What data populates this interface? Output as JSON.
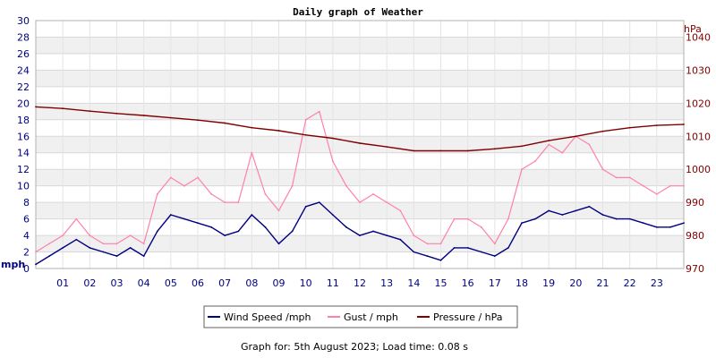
{
  "chart_data": {
    "type": "line",
    "title": "Daily graph of Weather",
    "footer": "Graph for: 5th August 2023; Load time: 0.08 s",
    "left_axis": {
      "unit": "mph",
      "ylim": [
        0,
        30
      ],
      "ticks": [
        "0",
        "2",
        "4",
        "6",
        "8",
        "10",
        "12",
        "14",
        "16",
        "18",
        "20",
        "22",
        "24",
        "26",
        "28",
        "30"
      ]
    },
    "right_axis": {
      "unit": "hPa",
      "ylim": [
        970,
        1045
      ],
      "ticks": [
        "970",
        "980",
        "990",
        "1000",
        "1010",
        "1020",
        "1030",
        "1040"
      ]
    },
    "x_tick_labels": [
      "01",
      "02",
      "03",
      "04",
      "05",
      "06",
      "07",
      "08",
      "09",
      "10",
      "11",
      "12",
      "13",
      "14",
      "15",
      "16",
      "17",
      "18",
      "19",
      "20",
      "21",
      "22",
      "23"
    ],
    "x_range_hours": [
      0,
      24
    ],
    "grid": true,
    "legend_position": "bottom",
    "colors": {
      "wind": "#000080",
      "gust": "#ff80a8",
      "pressure": "#800000",
      "band": "#f0f0f0",
      "grid": "#d8d8d8"
    },
    "series": [
      {
        "name": "Wind Speed /mph",
        "key": "wind",
        "axis": "left",
        "x": [
          0,
          0.5,
          1,
          1.5,
          2,
          2.5,
          3,
          3.5,
          4,
          4.5,
          5,
          5.5,
          6,
          6.5,
          7,
          7.5,
          8,
          8.5,
          9,
          9.5,
          10,
          10.5,
          11,
          11.5,
          12,
          12.5,
          13,
          13.5,
          14,
          14.5,
          15,
          15.5,
          16,
          16.5,
          17,
          17.5,
          18,
          18.5,
          19,
          19.5,
          20,
          20.5,
          21,
          21.5,
          22,
          22.5,
          23,
          23.5,
          24
        ],
        "values": [
          0.5,
          1.5,
          2.5,
          3.5,
          2.5,
          2.0,
          1.5,
          2.5,
          1.5,
          4.5,
          6.5,
          6.0,
          5.5,
          5.0,
          4.0,
          4.5,
          6.5,
          5.0,
          3.0,
          4.5,
          7.5,
          8.0,
          6.5,
          5.0,
          4.0,
          4.5,
          4.0,
          3.5,
          2.0,
          1.5,
          1.0,
          2.5,
          2.5,
          2.0,
          1.5,
          2.5,
          5.5,
          6.0,
          7.0,
          6.5,
          7.0,
          7.5,
          6.5,
          6.0,
          6.0,
          5.5,
          5.0,
          5.0,
          5.5
        ]
      },
      {
        "name": "Gust / mph",
        "key": "gust",
        "axis": "left",
        "x": [
          0,
          0.5,
          1,
          1.5,
          2,
          2.5,
          3,
          3.5,
          4,
          4.5,
          5,
          5.5,
          6,
          6.5,
          7,
          7.5,
          8,
          8.5,
          9,
          9.5,
          10,
          10.5,
          11,
          11.5,
          12,
          12.5,
          13,
          13.5,
          14,
          14.5,
          15,
          15.5,
          16,
          16.5,
          17,
          17.5,
          18,
          18.5,
          19,
          19.5,
          20,
          20.5,
          21,
          21.5,
          22,
          22.5,
          23,
          23.5,
          24
        ],
        "values": [
          2,
          3,
          4,
          6,
          4,
          3,
          3,
          4,
          3,
          9,
          11,
          10,
          11,
          9,
          8,
          8,
          14,
          9,
          7,
          10,
          18,
          19,
          13,
          10,
          8,
          9,
          8,
          7,
          4,
          3,
          3,
          6,
          6,
          5,
          3,
          6,
          12,
          13,
          15,
          14,
          16,
          15,
          12,
          11,
          11,
          10,
          9,
          10,
          10
        ]
      },
      {
        "name": "Pressure / hPa",
        "key": "pressure",
        "axis": "right",
        "x": [
          0,
          1,
          2,
          3,
          4,
          5,
          6,
          7,
          8,
          9,
          10,
          11,
          12,
          13,
          14,
          15,
          16,
          17,
          18,
          19,
          20,
          21,
          22,
          23,
          24
        ],
        "values": [
          1018.9,
          1018.4,
          1017.6,
          1016.9,
          1016.3,
          1015.6,
          1014.9,
          1014.0,
          1012.6,
          1011.7,
          1010.4,
          1009.4,
          1007.9,
          1006.8,
          1005.6,
          1005.6,
          1005.6,
          1006.2,
          1007.0,
          1008.7,
          1010.0,
          1011.5,
          1012.6,
          1013.3,
          1013.6
        ]
      }
    ]
  }
}
